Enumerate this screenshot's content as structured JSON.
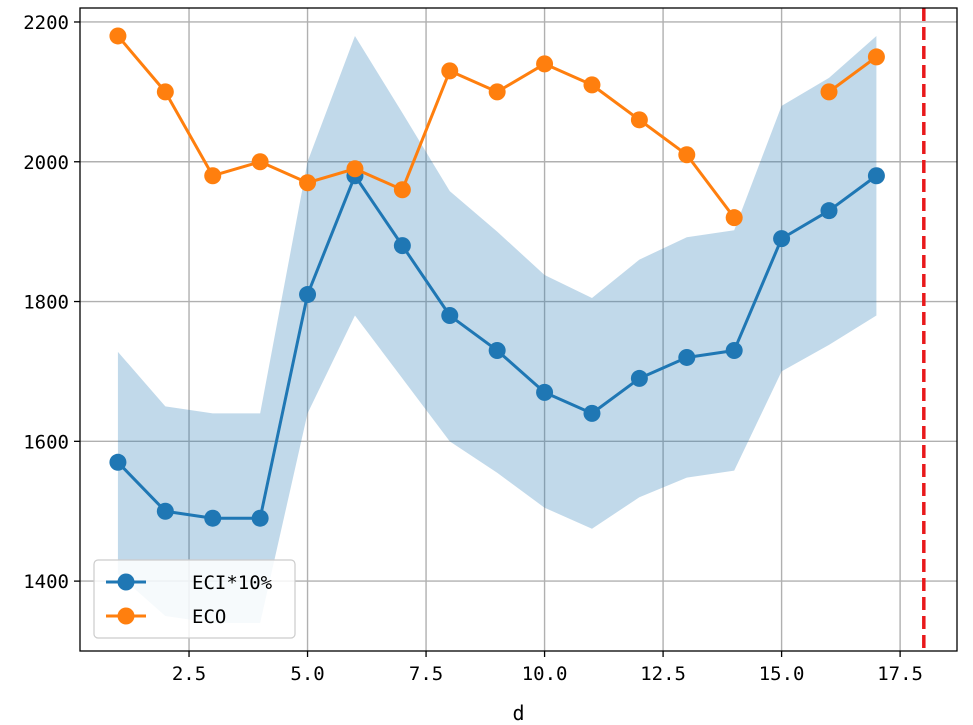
{
  "chart_data": {
    "type": "line",
    "title": "",
    "xlabel": "d",
    "ylabel": "",
    "xlim": [
      0.2,
      18.7
    ],
    "ylim": [
      1300,
      2220
    ],
    "x_ticks": [
      2.5,
      5.0,
      7.5,
      10.0,
      12.5,
      15.0,
      17.5
    ],
    "x_tick_labels": [
      "2.5",
      "5.0",
      "7.5",
      "10.0",
      "12.5",
      "15.0",
      "17.5"
    ],
    "y_ticks": [
      1400,
      1600,
      1800,
      2000,
      2200
    ],
    "y_tick_labels": [
      "1400",
      "1600",
      "1800",
      "2000",
      "2200"
    ],
    "grid": true,
    "legend_position": "lower-left",
    "vline": {
      "x": 18,
      "color": "#e8191b",
      "style": "dashed"
    },
    "band": {
      "color": "#1f77b4",
      "x": [
        1,
        2,
        3,
        4,
        5,
        6,
        7,
        8,
        9,
        10,
        11,
        12,
        13,
        14,
        15,
        16,
        17
      ],
      "lower": [
        1410,
        1350,
        1340,
        1340,
        1640,
        1780,
        1690,
        1600,
        1555,
        1505,
        1475,
        1520,
        1548,
        1558,
        1700,
        1738,
        1780
      ],
      "upper": [
        1728,
        1650,
        1640,
        1640,
        2000,
        2180,
        2070,
        1958,
        1900,
        1838,
        1805,
        1860,
        1892,
        1902,
        2080,
        2120,
        2180
      ]
    },
    "series": [
      {
        "name": "ECI*10%",
        "color": "#1f77b4",
        "x": [
          1,
          2,
          3,
          4,
          5,
          6,
          7,
          8,
          9,
          10,
          11,
          12,
          13,
          14,
          15,
          16,
          17
        ],
        "values": [
          1570,
          1500,
          1490,
          1490,
          1810,
          1980,
          1880,
          1780,
          1730,
          1670,
          1640,
          1690,
          1720,
          1730,
          1890,
          1930,
          1980
        ]
      },
      {
        "name": "ECO",
        "color": "#ff7f0e",
        "x": [
          1,
          2,
          3,
          4,
          5,
          6,
          7,
          8,
          9,
          10,
          11,
          12,
          13,
          14,
          15,
          16,
          17
        ],
        "values": [
          2180,
          2100,
          1980,
          2000,
          1970,
          1990,
          1960,
          2130,
          2100,
          2140,
          2110,
          2060,
          2010,
          1920,
          null,
          2100,
          2150
        ]
      }
    ]
  }
}
